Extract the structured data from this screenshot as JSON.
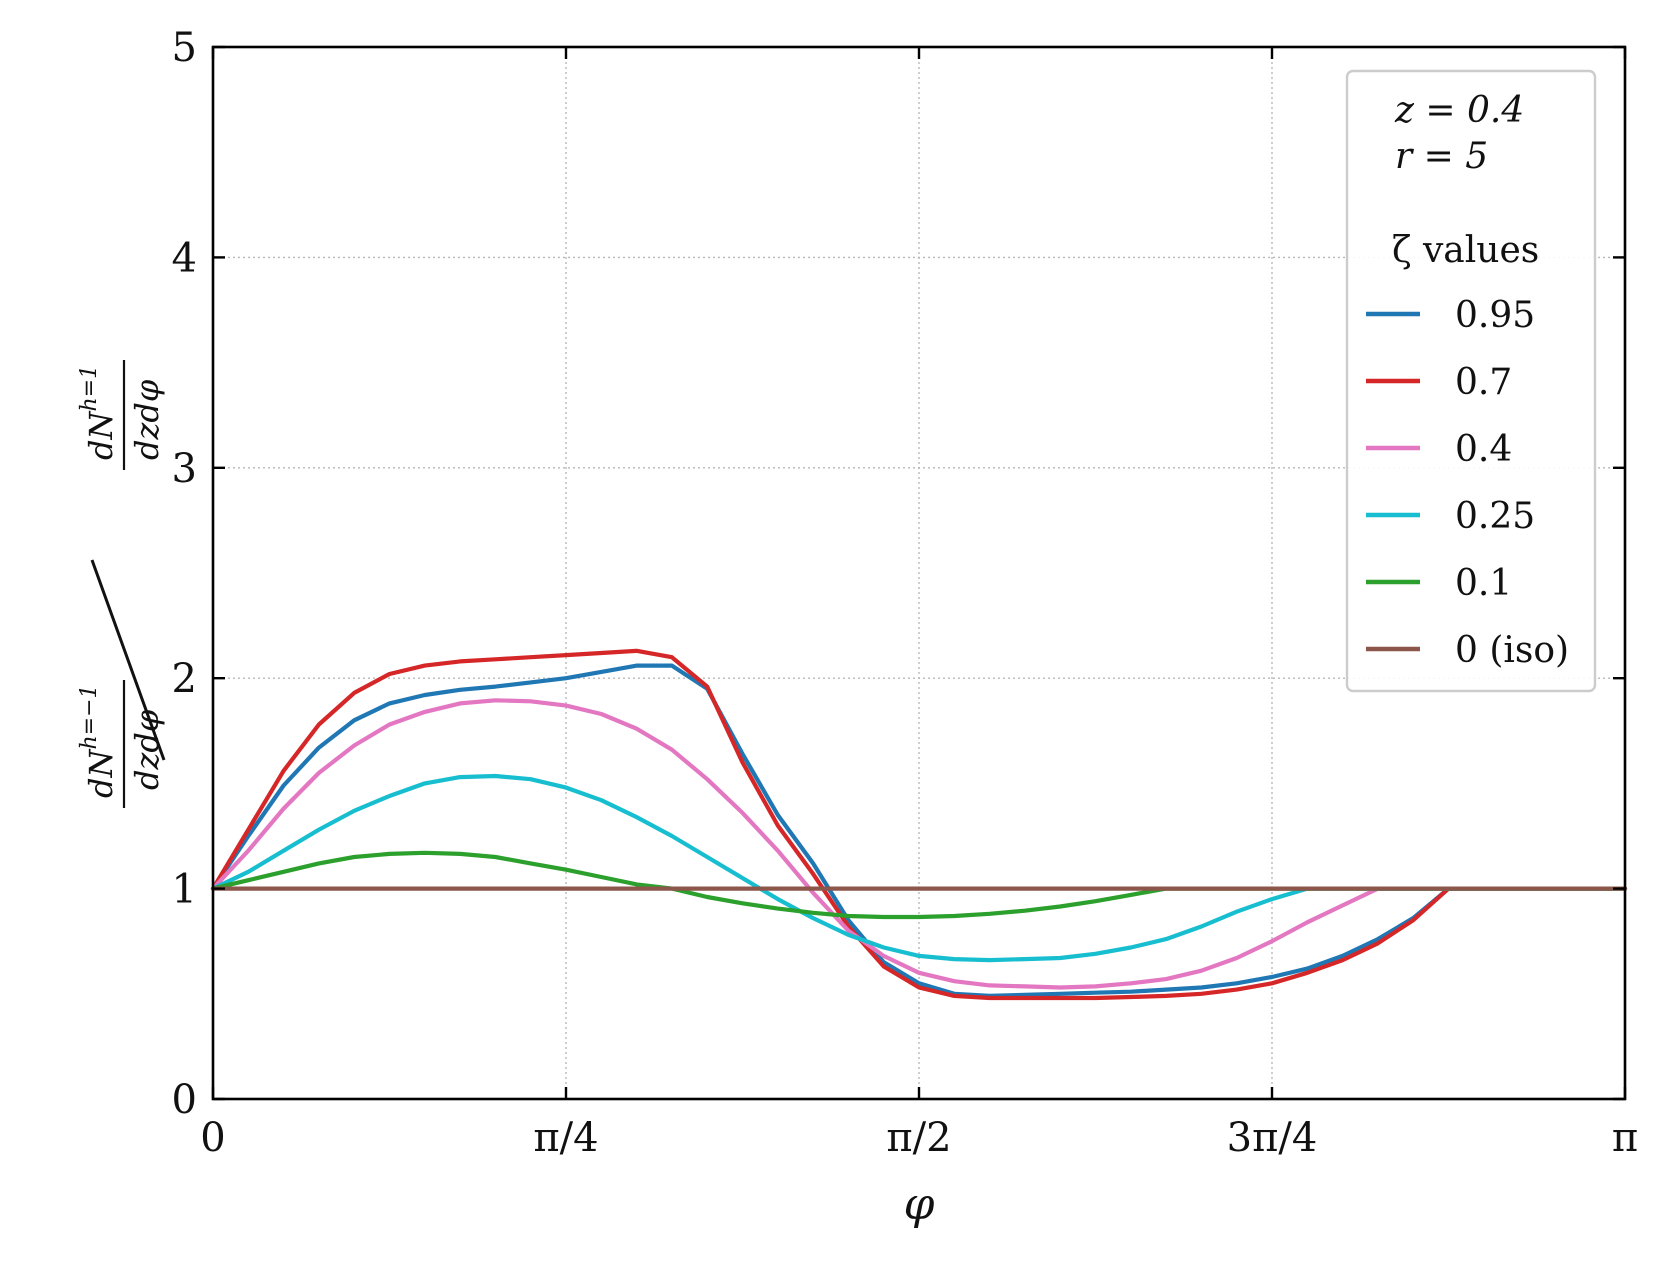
{
  "chart_data": {
    "type": "line",
    "xlabel": "φ",
    "ylabel": {
      "numerator": {
        "top": "dN",
        "sup": "h=1",
        "bottom": "dzdφ"
      },
      "denominator": {
        "top": "dN",
        "sup": "h=−1",
        "bottom": "dzdφ"
      }
    },
    "xlim": [
      0,
      3.14159265
    ],
    "ylim": [
      0,
      5
    ],
    "x_ticks": [
      {
        "value": 0,
        "label": "0"
      },
      {
        "value": 0.78539816,
        "label": "π/4"
      },
      {
        "value": 1.57079633,
        "label": "π/2"
      },
      {
        "value": 2.35619449,
        "label": "3π/4"
      },
      {
        "value": 3.14159265,
        "label": "π"
      }
    ],
    "y_ticks": [
      {
        "value": 0,
        "label": "0"
      },
      {
        "value": 1,
        "label": "1"
      },
      {
        "value": 2,
        "label": "2"
      },
      {
        "value": 3,
        "label": "3"
      },
      {
        "value": 4,
        "label": "4"
      },
      {
        "value": 5,
        "label": "5"
      }
    ],
    "grid": true,
    "legend": {
      "position": "top-right",
      "params": [
        "z = 0.4",
        "r = 5"
      ],
      "title": "ζ values"
    },
    "x": [
      0,
      0.0785,
      0.1571,
      0.2356,
      0.3142,
      0.3927,
      0.4712,
      0.5498,
      0.6283,
      0.7069,
      0.7854,
      0.8639,
      0.9425,
      1.021,
      1.0996,
      1.1781,
      1.2566,
      1.3352,
      1.4137,
      1.4923,
      1.5708,
      1.6493,
      1.7279,
      1.8064,
      1.885,
      1.9635,
      2.042,
      2.1206,
      2.1991,
      2.2777,
      2.3562,
      2.4347,
      2.5133,
      2.5918,
      2.6704,
      2.7489,
      2.8274,
      2.906,
      2.9845,
      3.0631,
      3.1416
    ],
    "series": [
      {
        "name": "0.95",
        "color": "#1f77b4",
        "values": [
          1.0,
          1.25,
          1.49,
          1.67,
          1.8,
          1.88,
          1.92,
          1.945,
          1.96,
          1.98,
          2.0,
          2.03,
          2.06,
          2.06,
          1.95,
          1.64,
          1.35,
          1.12,
          0.85,
          0.65,
          0.55,
          0.5,
          0.49,
          0.495,
          0.5,
          0.505,
          0.51,
          0.52,
          0.53,
          0.55,
          0.58,
          0.62,
          0.68,
          0.76,
          0.86,
          1.0,
          1.0,
          1.0,
          1.0,
          1.0,
          1.0
        ]
      },
      {
        "name": "0.7",
        "color": "#d62728",
        "values": [
          1.0,
          1.28,
          1.56,
          1.78,
          1.93,
          2.02,
          2.06,
          2.08,
          2.09,
          2.1,
          2.11,
          2.12,
          2.13,
          2.1,
          1.96,
          1.6,
          1.3,
          1.07,
          0.82,
          0.63,
          0.53,
          0.49,
          0.48,
          0.48,
          0.48,
          0.48,
          0.485,
          0.49,
          0.5,
          0.52,
          0.55,
          0.6,
          0.66,
          0.74,
          0.85,
          1.0,
          1.0,
          1.0,
          1.0,
          1.0,
          1.0
        ]
      },
      {
        "name": "0.4",
        "color": "#e377c2",
        "values": [
          1.0,
          1.18,
          1.38,
          1.55,
          1.68,
          1.78,
          1.84,
          1.88,
          1.895,
          1.89,
          1.87,
          1.83,
          1.76,
          1.66,
          1.52,
          1.36,
          1.18,
          0.98,
          0.8,
          0.68,
          0.6,
          0.56,
          0.54,
          0.535,
          0.53,
          0.535,
          0.55,
          0.57,
          0.61,
          0.67,
          0.75,
          0.84,
          0.92,
          1.0,
          1.0,
          1.0,
          1.0,
          1.0,
          1.0,
          1.0,
          1.0
        ]
      },
      {
        "name": "0.25",
        "color": "#17becf",
        "values": [
          1.0,
          1.08,
          1.18,
          1.28,
          1.37,
          1.44,
          1.5,
          1.53,
          1.535,
          1.52,
          1.48,
          1.42,
          1.34,
          1.25,
          1.15,
          1.05,
          0.95,
          0.86,
          0.78,
          0.72,
          0.68,
          0.665,
          0.66,
          0.665,
          0.67,
          0.69,
          0.72,
          0.76,
          0.82,
          0.89,
          0.95,
          1.0,
          1.0,
          1.0,
          1.0,
          1.0,
          1.0,
          1.0,
          1.0,
          1.0,
          1.0
        ]
      },
      {
        "name": "0.1",
        "color": "#2ca02c",
        "values": [
          1.0,
          1.04,
          1.08,
          1.12,
          1.15,
          1.165,
          1.17,
          1.165,
          1.15,
          1.12,
          1.09,
          1.055,
          1.02,
          1.0,
          0.96,
          0.93,
          0.905,
          0.885,
          0.87,
          0.865,
          0.865,
          0.87,
          0.88,
          0.895,
          0.915,
          0.94,
          0.97,
          1.0,
          1.0,
          1.0,
          1.0,
          1.0,
          1.0,
          1.0,
          1.0,
          1.0,
          1.0,
          1.0,
          1.0,
          1.0,
          1.0
        ]
      },
      {
        "name": "0 (iso)",
        "color": "#8c564b",
        "values": [
          1.0,
          1.0,
          1.0,
          1.0,
          1.0,
          1.0,
          1.0,
          1.0,
          1.0,
          1.0,
          1.0,
          1.0,
          1.0,
          1.0,
          1.0,
          1.0,
          1.0,
          1.0,
          1.0,
          1.0,
          1.0,
          1.0,
          1.0,
          1.0,
          1.0,
          1.0,
          1.0,
          1.0,
          1.0,
          1.0,
          1.0,
          1.0,
          1.0,
          1.0,
          1.0,
          1.0,
          1.0,
          1.0,
          1.0,
          1.0,
          1.0
        ]
      }
    ]
  }
}
